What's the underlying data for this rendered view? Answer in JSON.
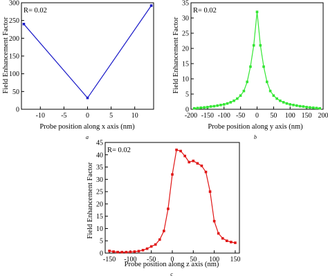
{
  "chart_data": [
    {
      "type": "line",
      "panel": "a",
      "annotation": "R= 0.02",
      "xlabel": "Probe position along x axis (nm)",
      "ylabel": "Field Enhancement Factor",
      "xlim": [
        -14,
        14
      ],
      "ylim": [
        0,
        300
      ],
      "xticks": [
        -10,
        -5,
        0,
        5,
        10
      ],
      "yticks": [
        0,
        50,
        100,
        150,
        200,
        250,
        300
      ],
      "color": "#1a1ac8",
      "series": [
        {
          "x": [
            -13.5,
            0,
            13.5
          ],
          "y": [
            240,
            32,
            292
          ]
        }
      ]
    },
    {
      "type": "line",
      "panel": "b",
      "annotation": "R= 0.02",
      "xlabel": "Probe position along y axis (nm)",
      "ylabel": "Field Enhancement Factor",
      "xlim": [
        -200,
        200
      ],
      "ylim": [
        0,
        35
      ],
      "xticks": [
        -200,
        -150,
        -100,
        -50,
        0,
        50,
        100,
        150,
        200
      ],
      "yticks": [
        0,
        5,
        10,
        15,
        20,
        25,
        30,
        35
      ],
      "color": "#33e633",
      "series": [
        {
          "x": [
            -190,
            -180,
            -170,
            -160,
            -150,
            -140,
            -130,
            -120,
            -110,
            -100,
            -90,
            -80,
            -70,
            -60,
            -50,
            -40,
            -30,
            -20,
            -10,
            0,
            10,
            20,
            30,
            40,
            50,
            60,
            70,
            80,
            90,
            100,
            110,
            120,
            130,
            140,
            150,
            160,
            170,
            180,
            190
          ],
          "y": [
            0.3,
            0.4,
            0.5,
            0.6,
            0.7,
            0.9,
            1.0,
            1.2,
            1.4,
            1.6,
            1.9,
            2.3,
            2.8,
            3.5,
            4.5,
            6.0,
            9.0,
            14.0,
            21.0,
            32.0,
            21.0,
            14.0,
            9.0,
            6.0,
            4.5,
            3.5,
            2.8,
            2.3,
            1.9,
            1.6,
            1.4,
            1.2,
            1.0,
            0.9,
            0.7,
            0.6,
            0.5,
            0.4,
            0.3
          ]
        }
      ]
    },
    {
      "type": "line",
      "panel": "c",
      "annotation": "R= 0.02",
      "xlabel": "Probe position along z axis (nm)",
      "ylabel": "Field Enhancement Factor",
      "xlim": [
        -160,
        160
      ],
      "ylim": [
        0,
        45
      ],
      "xticks": [
        -150,
        -100,
        -50,
        0,
        50,
        100,
        150
      ],
      "yticks": [
        0,
        5,
        10,
        15,
        20,
        25,
        30,
        35,
        40,
        45
      ],
      "color": "#e01515",
      "series": [
        {
          "x": [
            -150,
            -140,
            -130,
            -120,
            -110,
            -100,
            -90,
            -80,
            -70,
            -60,
            -50,
            -40,
            -30,
            -20,
            -10,
            0,
            10,
            20,
            30,
            40,
            50,
            60,
            70,
            80,
            90,
            100,
            110,
            120,
            130,
            140,
            150
          ],
          "y": [
            0.9,
            0.6,
            0.4,
            0.4,
            0.4,
            0.5,
            0.6,
            0.8,
            1.2,
            1.8,
            2.7,
            3.5,
            5.5,
            9.0,
            18.0,
            32.0,
            42.0,
            41.5,
            39.5,
            37.0,
            37.5,
            36.5,
            35.5,
            33.0,
            25.0,
            13.0,
            8.0,
            6.0,
            5.0,
            4.5,
            4.2
          ]
        }
      ]
    }
  ]
}
